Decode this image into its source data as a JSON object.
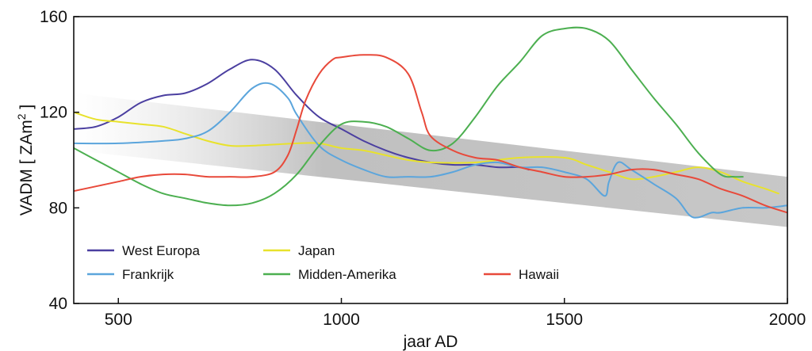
{
  "chart_data": {
    "type": "line",
    "title": "",
    "xlabel": "jaar AD",
    "ylabel_prefix": "VADM [ ZAm",
    "ylabel_sup": "2",
    "ylabel_suffix": " ]",
    "xlim": [
      400,
      2000
    ],
    "ylim": [
      40,
      160
    ],
    "xticks": [
      500,
      1000,
      1500,
      2000
    ],
    "yticks": [
      40,
      80,
      120,
      160
    ],
    "grid": false,
    "legend_position": "bottom-left",
    "trend_band": {
      "color": "#bfbfbf",
      "upper": [
        [
          400,
          128
        ],
        [
          2000,
          93
        ]
      ],
      "lower": [
        [
          400,
          104
        ],
        [
          2000,
          72
        ]
      ]
    },
    "series": [
      {
        "name": "West Europa",
        "color": "#4b3fa0",
        "points": [
          [
            400,
            113
          ],
          [
            450,
            114
          ],
          [
            500,
            118
          ],
          [
            550,
            124
          ],
          [
            600,
            127
          ],
          [
            650,
            128
          ],
          [
            700,
            132
          ],
          [
            750,
            138
          ],
          [
            800,
            142
          ],
          [
            850,
            138
          ],
          [
            900,
            127
          ],
          [
            950,
            118
          ],
          [
            1000,
            113
          ],
          [
            1050,
            108
          ],
          [
            1100,
            104
          ],
          [
            1150,
            101
          ],
          [
            1200,
            99
          ],
          [
            1250,
            98
          ],
          [
            1300,
            98
          ],
          [
            1350,
            97
          ],
          [
            1400,
            97
          ],
          [
            1420,
            96
          ]
        ]
      },
      {
        "name": "Japan",
        "color": "#e8e22c",
        "points": [
          [
            400,
            120
          ],
          [
            450,
            117
          ],
          [
            500,
            116
          ],
          [
            550,
            115
          ],
          [
            600,
            114
          ],
          [
            650,
            111
          ],
          [
            700,
            108
          ],
          [
            750,
            106
          ],
          [
            800,
            106
          ],
          [
            900,
            107
          ],
          [
            950,
            107
          ],
          [
            1000,
            105
          ],
          [
            1050,
            104
          ],
          [
            1100,
            102
          ],
          [
            1150,
            100
          ],
          [
            1200,
            99
          ],
          [
            1300,
            99
          ],
          [
            1400,
            101
          ],
          [
            1500,
            101
          ],
          [
            1550,
            98
          ],
          [
            1600,
            95
          ],
          [
            1650,
            92
          ],
          [
            1700,
            93
          ],
          [
            1750,
            95
          ],
          [
            1800,
            97
          ],
          [
            1850,
            95
          ],
          [
            1900,
            91
          ],
          [
            1950,
            88
          ],
          [
            1980,
            86
          ]
        ]
      },
      {
        "name": "Frankrijk",
        "color": "#5ba5dc",
        "points": [
          [
            400,
            107
          ],
          [
            500,
            107
          ],
          [
            600,
            108
          ],
          [
            650,
            109
          ],
          [
            700,
            112
          ],
          [
            750,
            120
          ],
          [
            800,
            130
          ],
          [
            840,
            132
          ],
          [
            880,
            126
          ],
          [
            900,
            119
          ],
          [
            950,
            106
          ],
          [
            1000,
            100
          ],
          [
            1050,
            96
          ],
          [
            1100,
            93
          ],
          [
            1150,
            93
          ],
          [
            1200,
            93
          ],
          [
            1250,
            95
          ],
          [
            1300,
            98
          ],
          [
            1350,
            99
          ],
          [
            1400,
            97
          ],
          [
            1450,
            97
          ],
          [
            1500,
            95
          ],
          [
            1550,
            92
          ],
          [
            1590,
            85
          ],
          [
            1600,
            91
          ],
          [
            1620,
            99
          ],
          [
            1650,
            96
          ],
          [
            1700,
            90
          ],
          [
            1750,
            84
          ],
          [
            1780,
            77
          ],
          [
            1800,
            76
          ],
          [
            1830,
            78
          ],
          [
            1850,
            78
          ],
          [
            1900,
            80
          ],
          [
            1950,
            80
          ],
          [
            2000,
            81
          ]
        ]
      },
      {
        "name": "Midden-Amerika",
        "color": "#4caf50",
        "points": [
          [
            400,
            105
          ],
          [
            450,
            100
          ],
          [
            500,
            95
          ],
          [
            550,
            90
          ],
          [
            600,
            86
          ],
          [
            650,
            84
          ],
          [
            700,
            82
          ],
          [
            750,
            81
          ],
          [
            800,
            82
          ],
          [
            850,
            86
          ],
          [
            900,
            94
          ],
          [
            950,
            106
          ],
          [
            1000,
            115
          ],
          [
            1050,
            116
          ],
          [
            1100,
            114
          ],
          [
            1150,
            109
          ],
          [
            1200,
            104
          ],
          [
            1250,
            107
          ],
          [
            1300,
            118
          ],
          [
            1350,
            131
          ],
          [
            1400,
            141
          ],
          [
            1450,
            152
          ],
          [
            1500,
            155
          ],
          [
            1550,
            155
          ],
          [
            1600,
            150
          ],
          [
            1650,
            138
          ],
          [
            1700,
            126
          ],
          [
            1750,
            115
          ],
          [
            1800,
            103
          ],
          [
            1850,
            94
          ],
          [
            1880,
            93
          ],
          [
            1900,
            93
          ]
        ]
      },
      {
        "name": "Hawaii",
        "color": "#e8493a",
        "points": [
          [
            400,
            87
          ],
          [
            450,
            89
          ],
          [
            500,
            91
          ],
          [
            550,
            93
          ],
          [
            600,
            94
          ],
          [
            650,
            94
          ],
          [
            700,
            93
          ],
          [
            750,
            93
          ],
          [
            800,
            93
          ],
          [
            850,
            95
          ],
          [
            880,
            102
          ],
          [
            900,
            113
          ],
          [
            920,
            125
          ],
          [
            950,
            136
          ],
          [
            980,
            142
          ],
          [
            1000,
            143
          ],
          [
            1050,
            144
          ],
          [
            1100,
            143
          ],
          [
            1150,
            136
          ],
          [
            1180,
            120
          ],
          [
            1200,
            110
          ],
          [
            1250,
            104
          ],
          [
            1300,
            101
          ],
          [
            1350,
            100
          ],
          [
            1400,
            97
          ],
          [
            1450,
            95
          ],
          [
            1500,
            93
          ],
          [
            1550,
            93
          ],
          [
            1600,
            94
          ],
          [
            1650,
            96
          ],
          [
            1700,
            96
          ],
          [
            1750,
            94
          ],
          [
            1800,
            92
          ],
          [
            1850,
            88
          ],
          [
            1900,
            85
          ],
          [
            1950,
            81
          ],
          [
            2000,
            78
          ]
        ]
      }
    ],
    "legend_order": [
      "West Europa",
      "Japan",
      "Frankrijk",
      "Midden-Amerika",
      "Hawaii"
    ]
  }
}
